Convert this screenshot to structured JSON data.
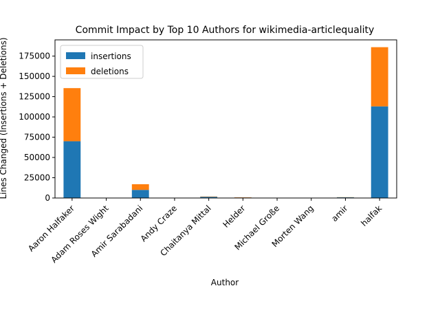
{
  "chart_data": {
    "type": "bar",
    "stacked": true,
    "title": "Commit Impact by Top 10 Authors for wikimedia-articlequality",
    "xlabel": "Author",
    "ylabel": "Lines Changed (Insertions + Deletions)",
    "categories": [
      "Aaron Halfaker",
      "Adam Roses Wight",
      "Amir Sarabadani",
      "Andy Craze",
      "Chaitanya Mittal",
      "Helder",
      "Michael Große",
      "Morten Wang",
      "amir",
      "halfak"
    ],
    "series": [
      {
        "name": "insertions",
        "color": "#1f77b4",
        "values": [
          70000,
          150,
          10000,
          100,
          1500,
          600,
          100,
          50,
          800,
          113000
        ]
      },
      {
        "name": "deletions",
        "color": "#ff7f0e",
        "values": [
          65500,
          50,
          7000,
          50,
          400,
          300,
          50,
          20,
          200,
          73000
        ]
      }
    ],
    "ylim": [
      0,
      195000
    ],
    "yticks": [
      0,
      25000,
      50000,
      75000,
      100000,
      125000,
      150000,
      175000
    ],
    "grid": false,
    "legend_position": "top-left"
  }
}
